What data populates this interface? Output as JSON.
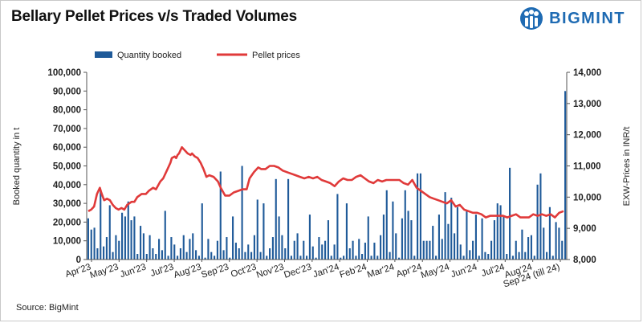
{
  "title": "Bellary Pellet Prices v/s Traded Volumes",
  "brand": {
    "name": "BIGMINT",
    "color": "#1f6bb3"
  },
  "source": "Source: BigMint",
  "colors": {
    "bars": "#1f5a99",
    "line": "#e03a3a"
  },
  "chart_data": {
    "type": "bar",
    "title": "Bellary Pellet Prices v/s Traded Volumes",
    "xlabel": "",
    "ylabel": "Booked quantity in t",
    "y2label": "EXW-Prices in INR/t",
    "ylim": [
      0,
      100000
    ],
    "y2lim": [
      8000,
      14000
    ],
    "yticks": [
      "0",
      "10,000",
      "20,000",
      "30,000",
      "40,000",
      "50,000",
      "60,000",
      "70,000",
      "80,000",
      "90,000",
      "100,000"
    ],
    "y2ticks": [
      "8,000",
      "9,000",
      "10,000",
      "11,000",
      "12,000",
      "13,000",
      "14,000"
    ],
    "x_tick_labels": [
      "Apr'23",
      "May'23",
      "Jun'23",
      "Jul'23",
      "Aug'23",
      "Sep'23",
      "Oct'23",
      "Nov'23",
      "Dec'23",
      "Jan'24",
      "Feb'24",
      "Mar'24",
      "Apr'24",
      "May'24",
      "Jun'24",
      "Jul'24",
      "Aug'24",
      "Sep'24 (till 24)"
    ],
    "legend": {
      "placement": "top",
      "bar_label": "Quantity booked",
      "line_label": "Pellet prices"
    },
    "grid": false,
    "series": [
      {
        "name": "Quantity booked",
        "type": "bar",
        "axis": "left",
        "values": [
          22000,
          16000,
          17000,
          6000,
          37000,
          7000,
          12000,
          29000,
          4000,
          13000,
          10000,
          25000,
          23000,
          31000,
          21000,
          23000,
          3000,
          18000,
          14000,
          3000,
          13000,
          6000,
          3000,
          11000,
          5000,
          26000,
          2000,
          12000,
          8000,
          2000,
          6000,
          13000,
          4000,
          11000,
          14000,
          5000,
          2000,
          30000,
          1000,
          11000,
          4000,
          2000,
          10000,
          47000,
          5000,
          12000,
          1000,
          23000,
          9000,
          6000,
          50000,
          4000,
          8000,
          4000,
          13000,
          32000,
          4000,
          30000,
          2000,
          6000,
          12000,
          43000,
          23000,
          13000,
          6000,
          43000,
          2000,
          10000,
          14000,
          2000,
          10000,
          2000,
          24000,
          7000,
          1000,
          12000,
          8000,
          10000,
          21000,
          2000,
          8000,
          35000,
          1000,
          2000,
          30000,
          6000,
          10000,
          2000,
          11000,
          3000,
          9000,
          23000,
          2000,
          9000,
          2000,
          13000,
          24000,
          37000,
          4000,
          31000,
          14000,
          1000,
          22000,
          37000,
          26000,
          21000,
          2000,
          46000,
          46000,
          10000,
          10000,
          10000,
          18000,
          2000,
          24000,
          11000,
          36000,
          19000,
          33000,
          14000,
          28000,
          8000,
          2000,
          26000,
          5000,
          10000,
          24000,
          2000,
          22000,
          4000,
          3000,
          10000,
          21000,
          30000,
          29000,
          23000,
          3000,
          49000,
          2000,
          10000,
          4000,
          16000,
          4000,
          12000,
          13000,
          2000,
          40000,
          46000,
          17000,
          4000,
          28000,
          2000,
          20000,
          17000,
          10000,
          90000
        ]
      },
      {
        "name": "Pellet prices",
        "type": "line",
        "axis": "right",
        "x": [
          0,
          2,
          4,
          6,
          8,
          9,
          11,
          13,
          15,
          17,
          19,
          21,
          23,
          25,
          27,
          30,
          32,
          34,
          37,
          40,
          42,
          45,
          47,
          50,
          52,
          55,
          57,
          58,
          60,
          61,
          62,
          63,
          64,
          65,
          67,
          69,
          71,
          72,
          74,
          76,
          78,
          80,
          82,
          84,
          87,
          90,
          92,
          95,
          98,
          101,
          104,
          107,
          110,
          112,
          115,
          118,
          120,
          123,
          126,
          129,
          132,
          135,
          138,
          141,
          144,
          147,
          150,
          153,
          156,
          159,
          162,
          165,
          168,
          171,
          174,
          177,
          180,
          183,
          186,
          189,
          192,
          195,
          198,
          201,
          204,
          207,
          210,
          213,
          216,
          219,
          222,
          225,
          228,
          231,
          234,
          237,
          240,
          243,
          246,
          249,
          252,
          255,
          258,
          261,
          264,
          267,
          270,
          273,
          276,
          279,
          282,
          285,
          288,
          291,
          294,
          297,
          300,
          303,
          306,
          309,
          312,
          315,
          318,
          321,
          324,
          327,
          330
        ],
        "values": [
          9550,
          9600,
          9700,
          10100,
          10300,
          10150,
          9900,
          9950,
          9900,
          9750,
          9650,
          9600,
          9650,
          9600,
          9750,
          9850,
          9850,
          10000,
          10100,
          10100,
          10200,
          10300,
          10250,
          10500,
          10600,
          10900,
          11100,
          11250,
          11300,
          11250,
          11350,
          11400,
          11500,
          11600,
          11500,
          11400,
          11350,
          11400,
          11300,
          11250,
          11100,
          10900,
          10650,
          10700,
          10650,
          10500,
          10300,
          10050,
          10050,
          10150,
          10200,
          10250,
          10250,
          10600,
          10800,
          10950,
          10900,
          10900,
          11000,
          11000,
          10950,
          10850,
          10800,
          10750,
          10700,
          10650,
          10600,
          10650,
          10600,
          10650,
          10550,
          10500,
          10450,
          10350,
          10500,
          10600,
          10550,
          10550,
          10650,
          10700,
          10600,
          10500,
          10450,
          10550,
          10500,
          10550,
          10550,
          10550,
          10550,
          10450,
          10400,
          10550,
          10300,
          10200,
          10100,
          10000,
          9950,
          9900,
          9850,
          9800,
          9900,
          9700,
          9750,
          9600,
          9550,
          9500,
          9500,
          9450,
          9350,
          9400,
          9400,
          9400,
          9400,
          9350,
          9400,
          9450,
          9350,
          9350,
          9350,
          9450,
          9400,
          9450,
          9400,
          9450,
          9350,
          9500,
          9550
        ]
      }
    ]
  }
}
